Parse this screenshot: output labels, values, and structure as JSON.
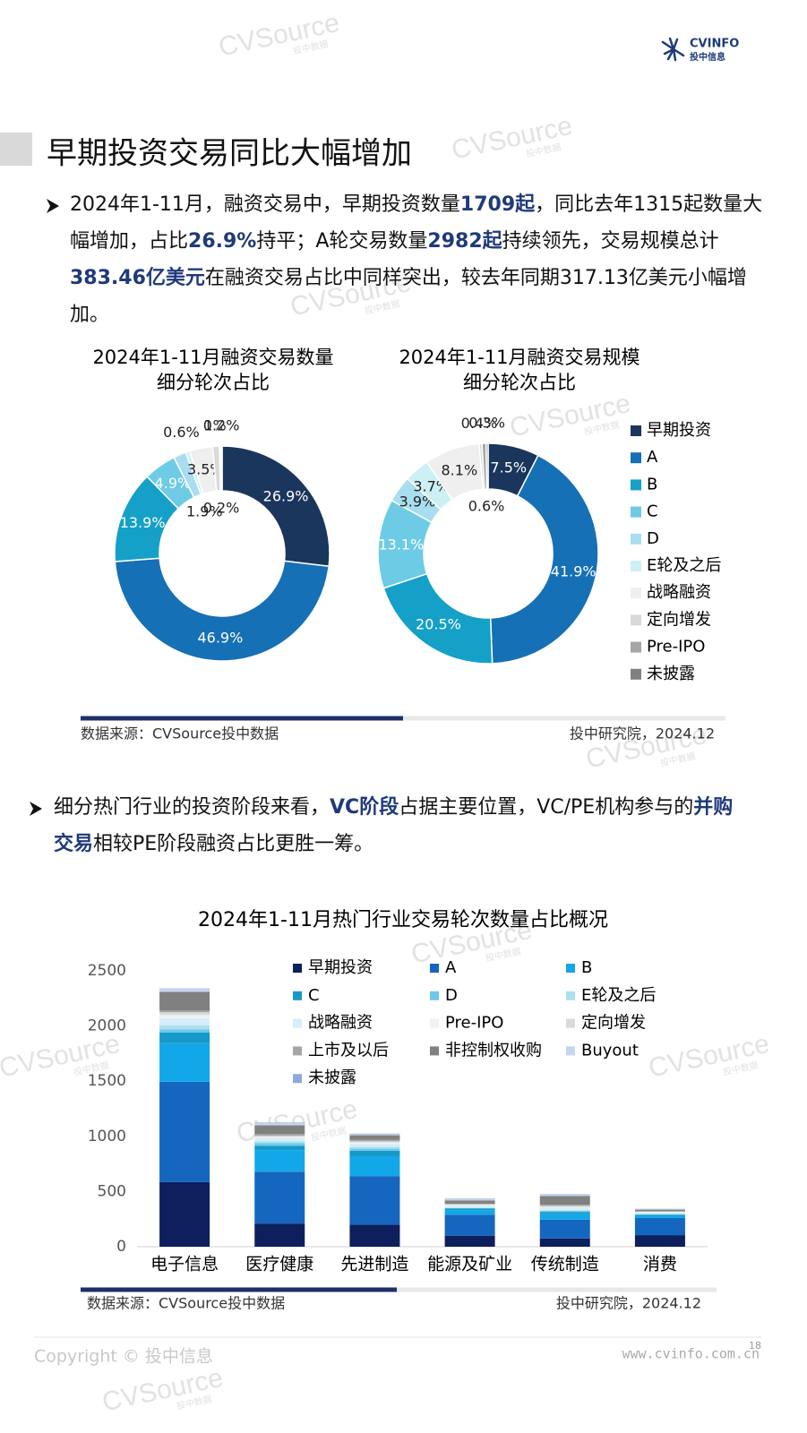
{
  "header": {
    "logo": "CVINFO",
    "logo_sub": "投中信息"
  },
  "watermark": {
    "text": "CVSource",
    "sub": "投中数据"
  },
  "section_title": "早期投资交易同比大幅增加",
  "paragraphs": [
    {
      "segments": [
        {
          "text": "2024年1-11月，融资交易中，早期投资数量",
          "bold": false
        },
        {
          "text": "1709起",
          "bold": true
        },
        {
          "text": "，同比去年1315起数量大幅增加，占比",
          "bold": false
        },
        {
          "text": "26.9%",
          "bold": true
        },
        {
          "text": "持平；A轮交易数量",
          "bold": false
        },
        {
          "text": "2982起",
          "bold": true
        },
        {
          "text": "持续领先，交易规模总计",
          "bold": false
        },
        {
          "text": "383.46亿美元",
          "bold": true
        },
        {
          "text": "在融资交易占比中同样突出，较去年同期317.13亿美元小幅增加。",
          "bold": false
        }
      ]
    },
    {
      "segments": [
        {
          "text": "细分热门行业的投资阶段来看，",
          "bold": false
        },
        {
          "text": "VC阶段",
          "bold": true
        },
        {
          "text": "占据主要位置，VC/PE机构参与的",
          "bold": false
        },
        {
          "text": "并购交易",
          "bold": true
        },
        {
          "text": "相较PE阶段融资占比更胜一筹。",
          "bold": false
        }
      ]
    }
  ],
  "chart_data": [
    {
      "type": "donut",
      "categories": [
        "早期投资",
        "A",
        "B",
        "C",
        "D",
        "E轮及之后",
        "战略融资",
        "定向增发",
        "Pre-IPO",
        "未披露"
      ],
      "colors": [
        "#1b365d",
        "#1570b5",
        "#15a0c8",
        "#6dcbe5",
        "#a9def0",
        "#cdf0f4",
        "#efefef",
        "#d9d9d9",
        "#a6a6a6",
        "#808080"
      ],
      "panels": [
        {
          "title": [
            "2024年1-11月融资交易数量",
            "细分轮次占比"
          ],
          "values": [
            26.9,
            46.9,
            13.9,
            4.9,
            1.9,
            0.6,
            3.5,
            1,
            0.2,
            0.2
          ],
          "value_labels": [
            "26.9%",
            "46.9%",
            "13.9%",
            "4.9%",
            "1.9%",
            "0.6%",
            "3.5%",
            "1%",
            "0.2%",
            "0.2%"
          ]
        },
        {
          "title": [
            "2024年1-11月融资交易规模",
            "细分轮次占比"
          ],
          "values": [
            7.5,
            41.9,
            20.5,
            13.1,
            3.9,
            3.7,
            8.1,
            0.4,
            0.6,
            0.3
          ],
          "value_labels": [
            "7.5%",
            "41.9%",
            "20.5%",
            "13.1%",
            "3.9%",
            "3.7%",
            "8.1%",
            "0.4%",
            "0.6%",
            "0.3%"
          ]
        }
      ],
      "source": "数据来源：CVSource投中数据",
      "credit": "投中研究院，2024.12"
    },
    {
      "type": "stacked_bar",
      "title": "2024年1-11月热门行业交易轮次数量占比概况",
      "categories": [
        "电子信息",
        "医疗健康",
        "先进制造",
        "能源及矿业",
        "传统制造",
        "消费"
      ],
      "series": [
        {
          "name": "早期投资",
          "color": "#0d1f5c",
          "values": [
            585,
            210,
            200,
            100,
            75,
            105
          ]
        },
        {
          "name": "A",
          "color": "#1466bf",
          "values": [
            910,
            470,
            440,
            190,
            170,
            155
          ]
        },
        {
          "name": "B",
          "color": "#12a8e8",
          "values": [
            350,
            195,
            180,
            40,
            50,
            20
          ]
        },
        {
          "name": "C",
          "color": "#1599c8",
          "values": [
            95,
            40,
            50,
            15,
            20,
            10
          ]
        },
        {
          "name": "D",
          "color": "#6fc8e8",
          "values": [
            30,
            25,
            20,
            5,
            10,
            5
          ]
        },
        {
          "name": "E轮及之后",
          "color": "#aee0f0",
          "values": [
            35,
            15,
            15,
            5,
            5,
            3
          ]
        },
        {
          "name": "战略融资",
          "color": "#d5eef7",
          "values": [
            65,
            30,
            30,
            20,
            25,
            15
          ]
        },
        {
          "name": "Pre-IPO",
          "color": "#f2f2f2",
          "values": [
            30,
            10,
            10,
            5,
            5,
            3
          ]
        },
        {
          "name": "定向增发",
          "color": "#d9d9d9",
          "values": [
            25,
            10,
            10,
            5,
            10,
            3
          ]
        },
        {
          "name": "上市及以后",
          "color": "#a6a6a6",
          "values": [
            15,
            15,
            15,
            5,
            10,
            2
          ]
        },
        {
          "name": "非控制权收购",
          "color": "#808080",
          "values": [
            170,
            80,
            40,
            30,
            80,
            15
          ]
        },
        {
          "name": "Buyout",
          "color": "#c5d6ee",
          "values": [
            25,
            20,
            10,
            10,
            10,
            5
          ]
        },
        {
          "name": "未披露",
          "color": "#8eaadb",
          "values": [
            5,
            5,
            5,
            5,
            5,
            2
          ]
        }
      ],
      "ylim": [
        0,
        2500
      ],
      "yticks": [
        0,
        500,
        1000,
        1500,
        2000,
        2500
      ],
      "grid": false,
      "source": "数据来源：CVSource投中数据",
      "credit": "投中研究院，2024.12"
    }
  ],
  "footer": {
    "copyright": "Copyright © 投中信息",
    "url": "www.cvinfo.com.cn",
    "page": "18"
  }
}
